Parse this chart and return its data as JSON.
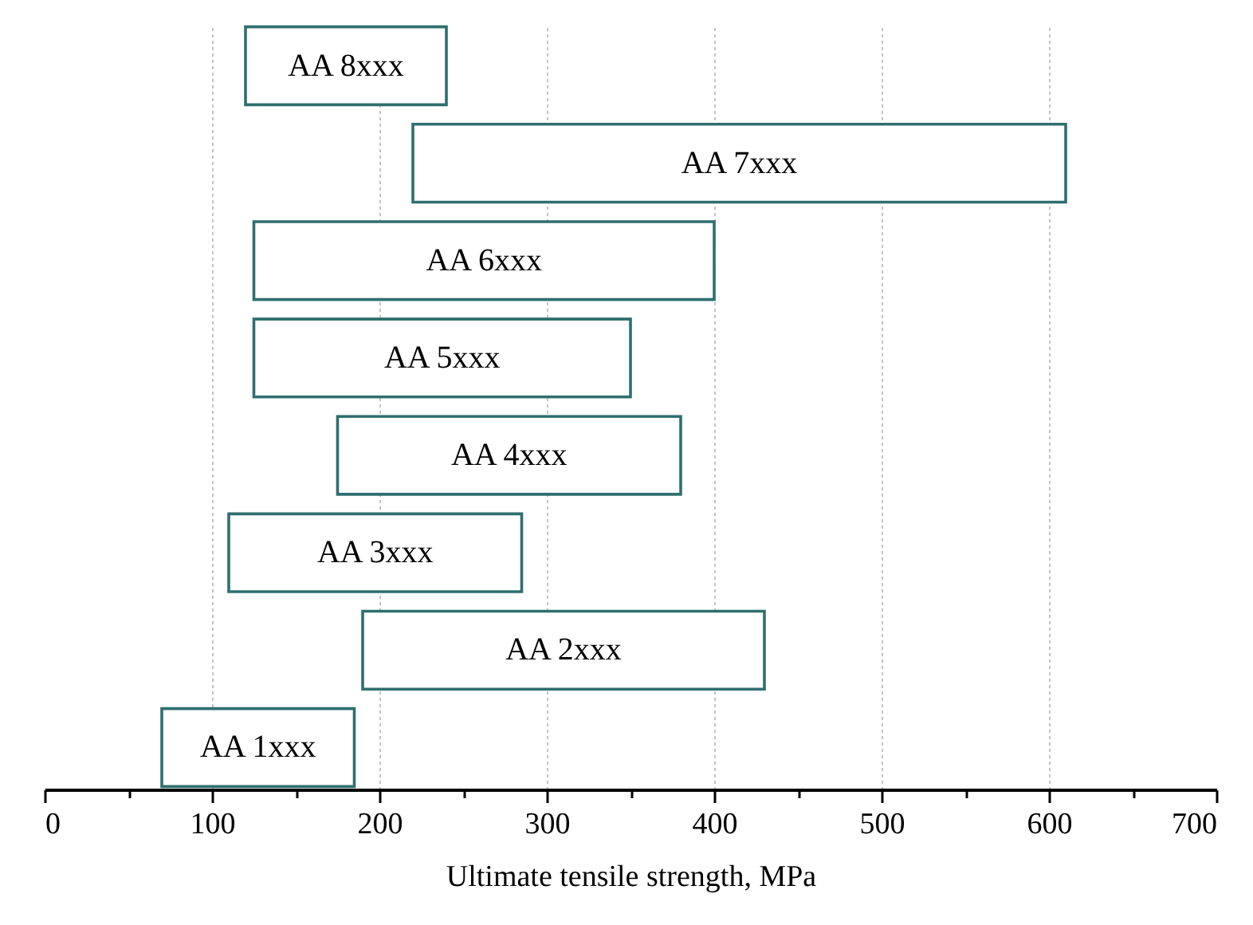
{
  "chart_data": {
    "type": "bar",
    "orientation": "horizontal",
    "xlabel": "Ultimate tensile strength, MPa",
    "categories": [
      "AA 8xxx",
      "AA 7xxx",
      "AA 6xxx",
      "AA 5xxx",
      "AA 4xxx",
      "AA 3xxx",
      "AA 2xxx",
      "AA 1xxx"
    ],
    "base": [
      120,
      220,
      125,
      125,
      175,
      110,
      190,
      70
    ],
    "values": [
      120,
      390,
      275,
      225,
      205,
      175,
      240,
      115
    ],
    "color": "#2f6f6f",
    "xlim": [
      0,
      700
    ],
    "xticks": [
      0,
      {
        "value": 50,
        "label": null
      },
      100,
      {
        "value": 150,
        "label": null
      },
      200,
      {
        "value": 250,
        "label": null
      },
      300,
      {
        "value": 350,
        "label": null
      },
      400,
      {
        "value": 450,
        "label": null
      },
      500,
      {
        "value": 550,
        "label": null
      },
      600,
      {
        "value": 650,
        "label": null
      },
      700
    ],
    "grid": "x",
    "tick_labels": "x"
  }
}
